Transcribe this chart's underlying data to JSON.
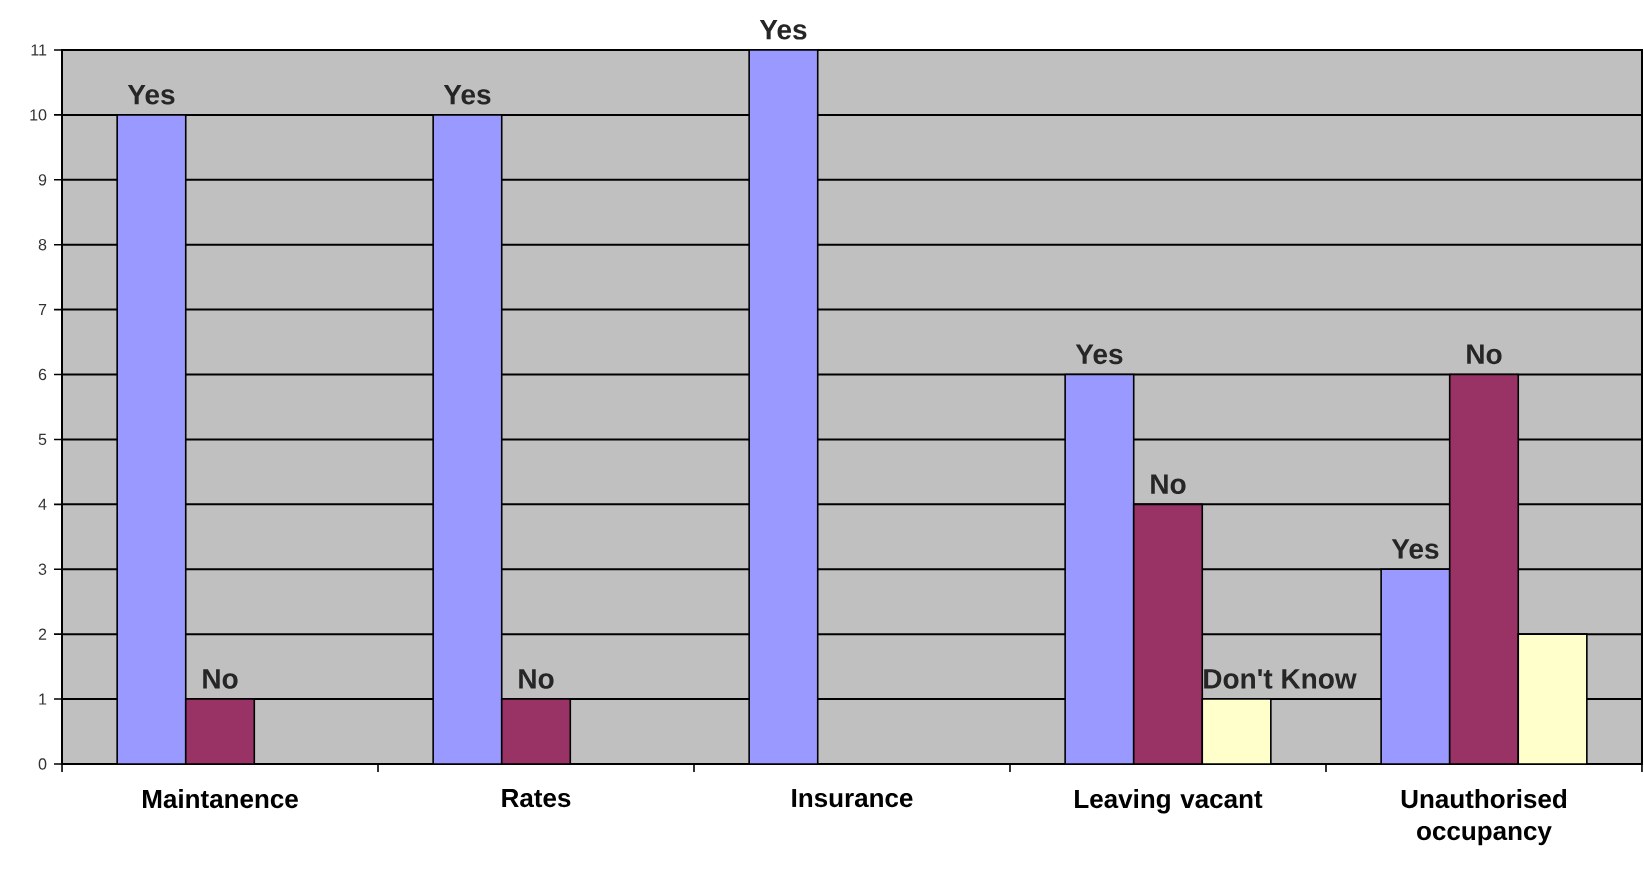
{
  "chart_data": {
    "type": "bar",
    "categories": [
      "Maintanence",
      "Rates",
      "Insurance",
      "Leaving vacant",
      "Unauthorised occupancy"
    ],
    "series": [
      {
        "color": "#9999ff",
        "values": [
          10,
          10,
          11,
          6,
          3
        ],
        "value_labels": [
          "Yes",
          "Yes",
          "Yes",
          "Yes",
          "Yes"
        ]
      },
      {
        "color": "#993366",
        "values": [
          1,
          1,
          null,
          4,
          6
        ],
        "value_labels": [
          "No",
          "No",
          null,
          "No",
          "No"
        ]
      },
      {
        "color": "#ffffcc",
        "values": [
          null,
          null,
          null,
          1,
          2
        ],
        "value_labels": [
          null,
          null,
          null,
          "Don't Know",
          null
        ]
      }
    ],
    "ylim": [
      0,
      11
    ],
    "yticks": [
      0,
      1,
      2,
      3,
      4,
      5,
      6,
      7,
      8,
      9,
      10,
      11
    ],
    "grid": "y"
  }
}
